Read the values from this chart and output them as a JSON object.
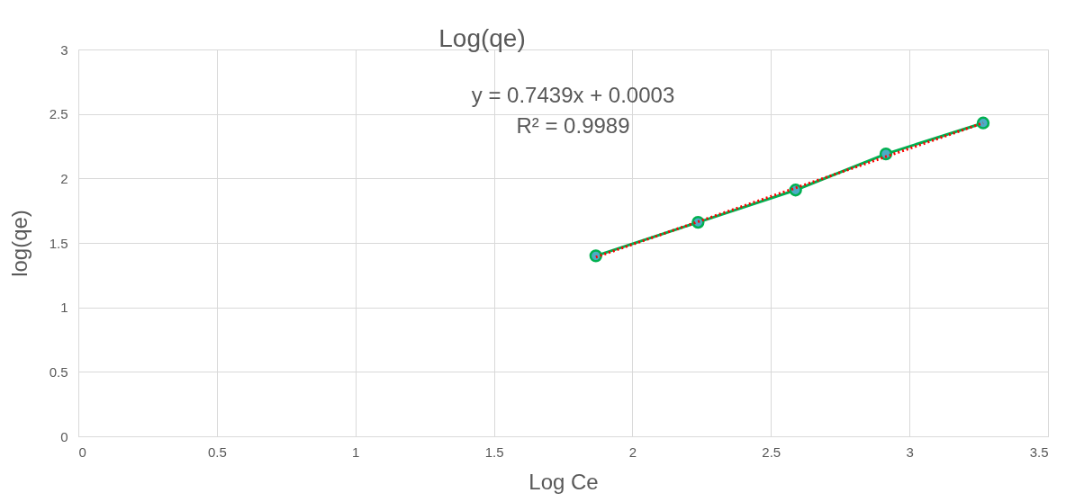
{
  "chart_data": {
    "type": "line",
    "title": "Log(qe)",
    "xlabel": "Log Ce",
    "ylabel": "log(qe)",
    "xlim": [
      0,
      3.5
    ],
    "xticks": [
      0,
      0.5,
      1,
      1.5,
      2,
      2.5,
      3,
      3.5
    ],
    "ylim": [
      0,
      3
    ],
    "yticks": [
      0,
      0.5,
      1,
      1.5,
      2,
      2.5,
      3
    ],
    "grid": true,
    "annotations": [
      "y = 0.7439x + 0.0003",
      "R² = 0.9989"
    ],
    "series": [
      {
        "color": "#00b050",
        "marker": "circle",
        "line_style": "solid",
        "x": [
          1.868,
          2.237,
          2.589,
          2.915,
          3.266
        ],
        "values": [
          1.4,
          1.66,
          1.91,
          2.19,
          2.43
        ]
      },
      {
        "type": "line",
        "color": "#ff0000",
        "marker": "none",
        "line_style": "dotted",
        "x": [
          1.868,
          3.266
        ],
        "values": [
          1.39,
          2.43
        ]
      }
    ]
  }
}
